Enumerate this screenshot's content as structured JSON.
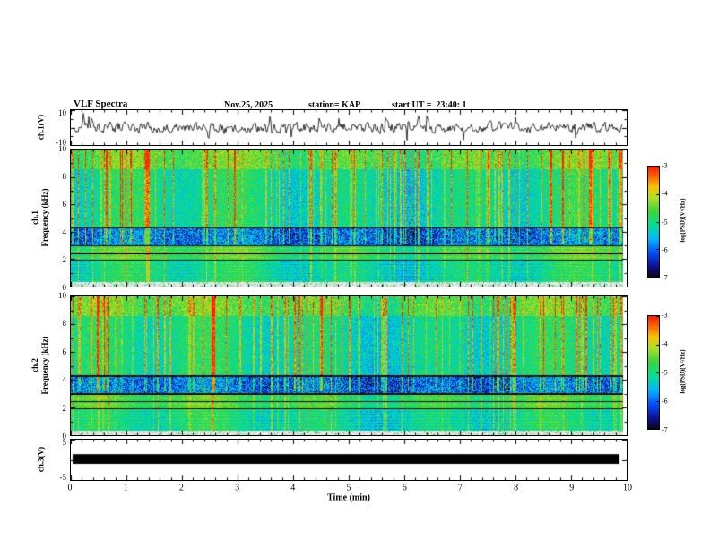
{
  "header": {
    "title": "VLF Spectra",
    "date": "Nov.25, 2025",
    "station": "station= KAP",
    "start_ut": "start UT =  23:40: 1"
  },
  "panels": {
    "ch1_wave": {
      "label": "ch.1(V)",
      "ymax": "10",
      "ymin": "-10"
    },
    "spec1": {
      "label_line1": "ch.1",
      "label_line2": "Frequency (kHz)",
      "yticks": [
        "10",
        "8",
        "6",
        "4",
        "2",
        "0"
      ]
    },
    "spec2": {
      "label_line1": "ch.2",
      "label_line2": "Frequency (kHz)",
      "yticks": [
        "10",
        "8",
        "6",
        "4",
        "2",
        "0"
      ]
    },
    "ch3": {
      "label": "ch.3(V)",
      "ymax": "5",
      "ymin": "-5"
    }
  },
  "xaxis": {
    "label": "Time (min)",
    "ticks": [
      "0",
      "1",
      "2",
      "3",
      "4",
      "5",
      "6",
      "7",
      "8",
      "9",
      "10"
    ]
  },
  "colorbars": [
    {
      "label": "log(PSD)(V²/Hz)",
      "ticks": [
        "-3",
        "-4",
        "-5",
        "-6",
        "-7"
      ]
    },
    {
      "label": "log(PSD)(V²/Hz)",
      "ticks": [
        "-3",
        "-4",
        "-5",
        "-6",
        "-7"
      ]
    }
  ],
  "chart_data": [
    {
      "type": "line",
      "title": "ch.1(V) waveform",
      "xlim": [
        0,
        10
      ],
      "ylim": [
        -10,
        10
      ],
      "yticks": [
        10,
        -10
      ],
      "description": "Broadband noisy voltage trace fluctuating around 0 V with frequent impulsive spikes reaching roughly +/-8 V over the full 10 minutes."
    },
    {
      "type": "heatmap",
      "title": "ch.1 VLF spectrogram",
      "ylabel": "Frequency (kHz)",
      "xlabel": "Time (min)",
      "xlim": [
        0,
        10
      ],
      "ylim": [
        0,
        10
      ],
      "colorbar": {
        "label": "log(PSD)(V²/Hz)",
        "range": [
          -7,
          -3
        ]
      },
      "bands": [
        {
          "f_khz": [
            0,
            0.35
          ],
          "psd": -7.5,
          "noise": 0.3,
          "appearance": "pale band below color scale"
        },
        {
          "f_khz": [
            0.35,
            1.9
          ],
          "psd": -5.1,
          "noise": 0.45,
          "appearance": "green speckled band with horizontal striping"
        },
        {
          "f_khz": [
            1.9,
            3.05
          ],
          "psd": -4.7,
          "noise": 0.4,
          "appearance": "yellow-green band with dark horizontal lines"
        },
        {
          "f_khz": [
            3.05,
            4.3
          ],
          "psd": -6.0,
          "noise": 0.8,
          "appearance": "cyan-blue band with dark blue speckles"
        },
        {
          "f_khz": [
            4.3,
            8.6
          ],
          "psd": -5.1,
          "noise": 0.5,
          "appearance": "green background with dense vertical red sferic streaks"
        },
        {
          "f_khz": [
            8.6,
            10.01
          ],
          "psd": -4.6,
          "noise": 0.6,
          "appearance": "yellow-orange noisy top band"
        }
      ],
      "features": "many vertical red-orange impulsive streaks (sferics) spanning ~3-10 kHz; thin dark horizontal lines near 2, 2.5, 3 and 4.3 kHz"
    },
    {
      "type": "heatmap",
      "title": "ch.2 VLF spectrogram",
      "ylabel": "Frequency (kHz)",
      "xlabel": "Time (min)",
      "xlim": [
        0,
        10
      ],
      "ylim": [
        0,
        10
      ],
      "colorbar": {
        "label": "log(PSD)(V²/Hz)",
        "range": [
          -7,
          -3
        ]
      },
      "bands": [
        {
          "f_khz": [
            0,
            0.35
          ],
          "psd": -7.5,
          "noise": 0.3,
          "appearance": "pale band below color scale"
        },
        {
          "f_khz": [
            0.35,
            1.9
          ],
          "psd": -5.1,
          "noise": 0.45,
          "appearance": "green speckled band with horizontal striping"
        },
        {
          "f_khz": [
            1.9,
            3.05
          ],
          "psd": -4.7,
          "noise": 0.4,
          "appearance": "yellow-green band with dark horizontal lines"
        },
        {
          "f_khz": [
            3.05,
            4.3
          ],
          "psd": -6.0,
          "noise": 0.8,
          "appearance": "cyan-blue band with dark blue speckles"
        },
        {
          "f_khz": [
            4.3,
            8.6
          ],
          "psd": -5.1,
          "noise": 0.5,
          "appearance": "green background with dense vertical red sferic streaks"
        },
        {
          "f_khz": [
            8.6,
            10.01
          ],
          "psd": -4.6,
          "noise": 0.6,
          "appearance": "yellow-orange noisy top band"
        }
      ],
      "features": "same banded structure and vertical sferic streaks as ch.1"
    },
    {
      "type": "line",
      "title": "ch.3(V)",
      "xlim": [
        0,
        10
      ],
      "ylim": [
        -5,
        5
      ],
      "yticks": [
        5,
        -5
      ],
      "description": "Saturated flat signal drawn as a thick solid black bar near 0 V for the entire interval."
    }
  ]
}
